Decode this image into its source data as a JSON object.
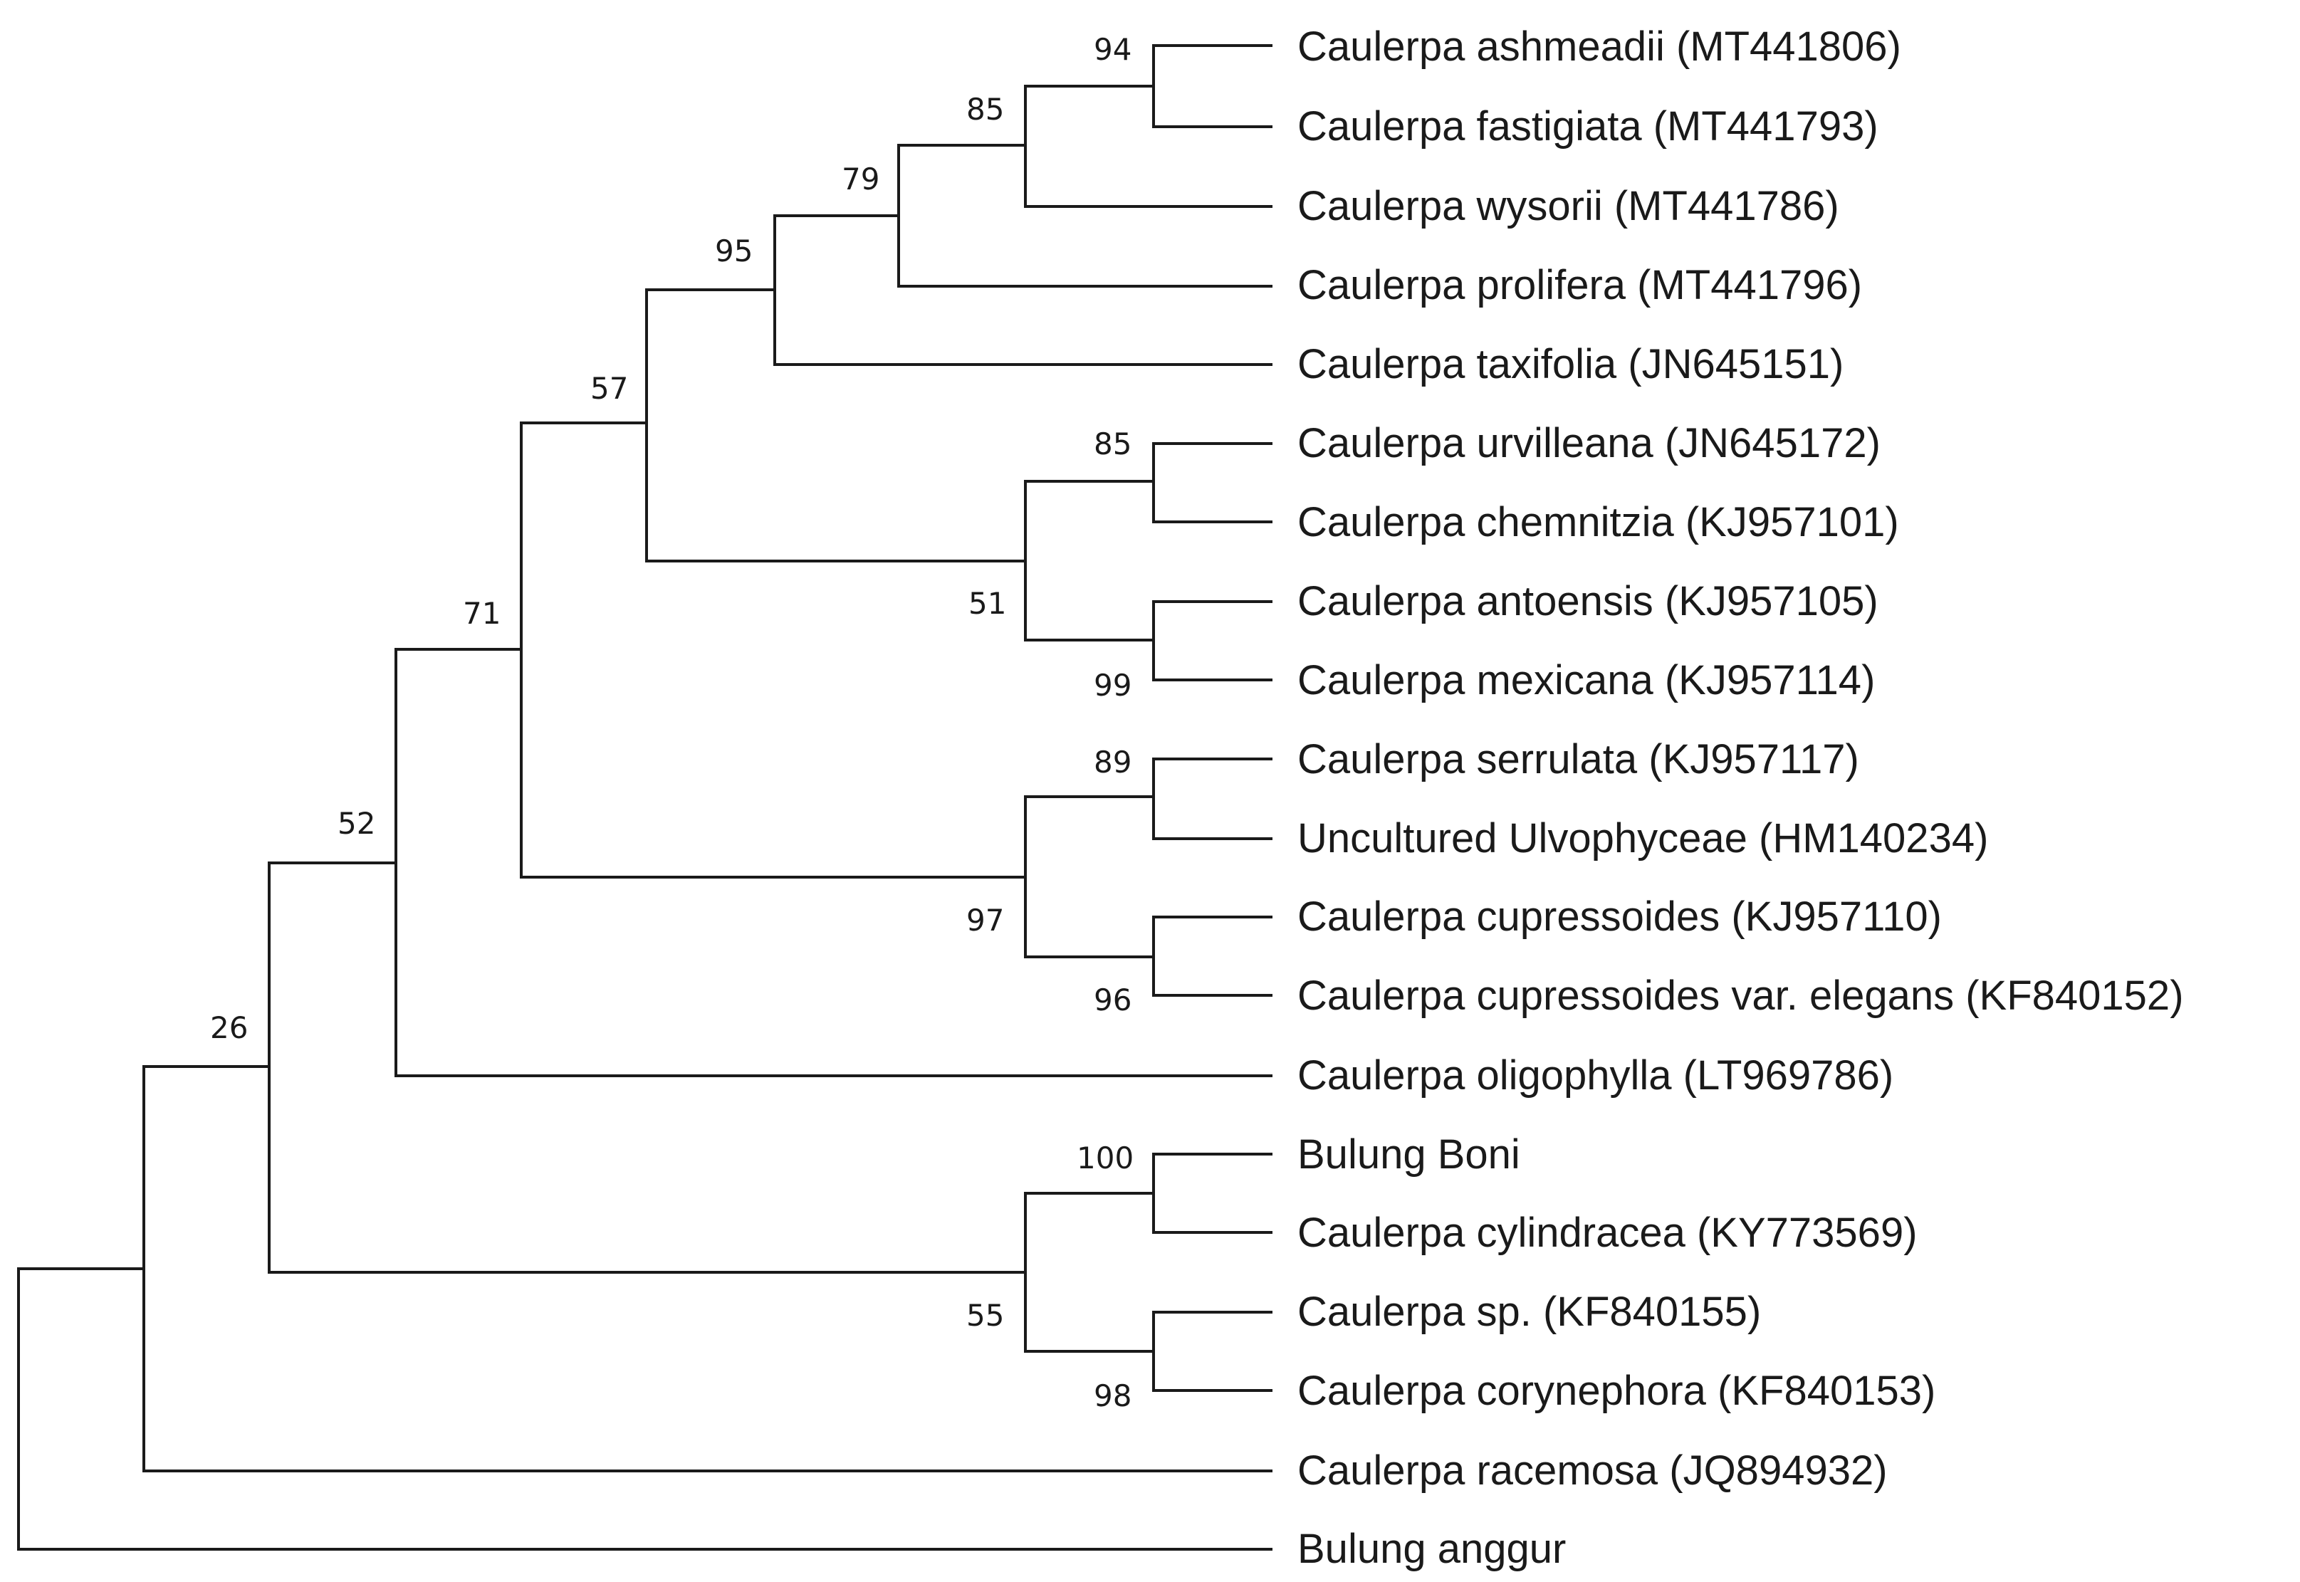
{
  "tree": {
    "taxa": [
      "Caulerpa ashmeadii (MT441806)",
      "Caulerpa fastigiata (MT441793)",
      "Caulerpa wysorii (MT441786)",
      "Caulerpa prolifera (MT441796)",
      "Caulerpa taxifolia (JN645151)",
      "Caulerpa urvilleana (JN645172)",
      "Caulerpa chemnitzia (KJ957101)",
      "Caulerpa antoensis (KJ957105)",
      "Caulerpa mexicana (KJ957114)",
      "Caulerpa serrulata (KJ957117)",
      "Uncultured Ulvophyceae (HM140234)",
      "Caulerpa cupressoides (KJ957110)",
      "Caulerpa cupressoides var. elegans (KF840152)",
      "Caulerpa oligophylla (LT969786)",
      "Bulung Boni",
      "Caulerpa cylindracea (KY773569)",
      "Caulerpa sp. (KF840155)",
      "Caulerpa corynephora (KF840153)",
      "Caulerpa racemosa (JQ894932)",
      "Bulung anggur"
    ],
    "bootstrap": {
      "ashmeadii_fastigiata": "94",
      "plus_wysorii": "85",
      "plus_prolifera": "79",
      "plus_taxifolia": "95",
      "upper_group": "57",
      "urvilleana_chemnitzia": "85",
      "urvilleana_antoensis_group": "51",
      "antoensis_mexicana": "99",
      "serrulata_uncultured": "89",
      "serrulata_cupressoides_group": "97",
      "cupressoides_pair": "96",
      "plus_serrulata_group": "71",
      "plus_oligophylla": "52",
      "bulung_boni_cylindracea": "100",
      "boni_sp_group": "55",
      "sp_corynephora": "98",
      "plus_boni_group": "26"
    }
  }
}
